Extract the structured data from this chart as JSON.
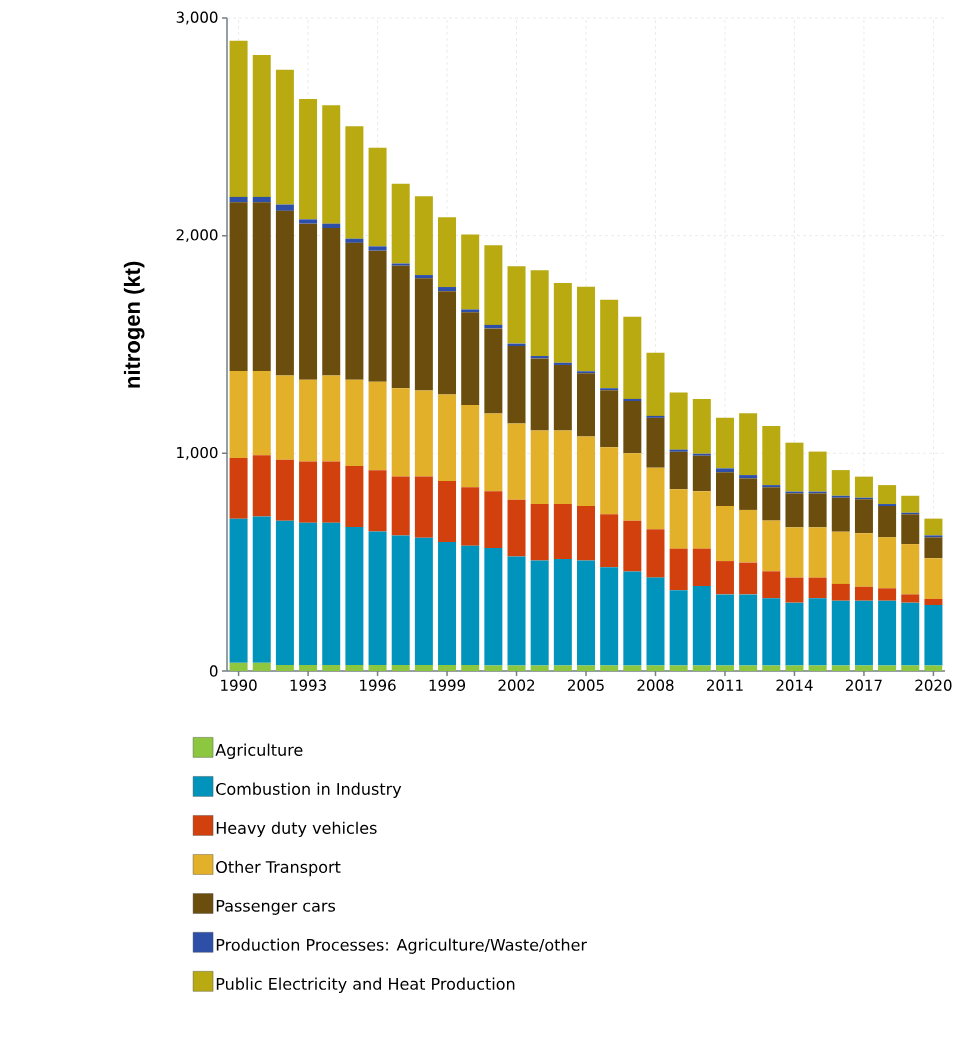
{
  "chart_data": {
    "type": "bar",
    "stacked": true,
    "ylabel": "nitrogen (kt)",
    "x": [
      1990,
      1991,
      1992,
      1993,
      1994,
      1995,
      1996,
      1997,
      1998,
      1999,
      2000,
      2001,
      2002,
      2003,
      2004,
      2005,
      2006,
      2007,
      2008,
      2009,
      2010,
      2011,
      2012,
      2013,
      2014,
      2015,
      2016,
      2017,
      2018,
      2019,
      2020
    ],
    "xlim": [
      1989.5,
      2020.5
    ],
    "xticks": [
      1990,
      1993,
      1996,
      1999,
      2002,
      2005,
      2008,
      2011,
      2014,
      2017,
      2020
    ],
    "ylim": [
      0,
      3000
    ],
    "yticks": [
      0,
      {
        "value": 1000,
        "label": "1,000"
      },
      {
        "value": 2000,
        "label": "2,000"
      },
      {
        "value": 3000,
        "label": "3,000"
      }
    ],
    "grid": true,
    "legend": "bottom",
    "series": [
      {
        "name": "Agriculture",
        "color": "#8dc63f",
        "values": [
          38,
          38,
          27,
          27,
          27,
          27,
          27,
          27,
          27,
          27,
          27,
          25,
          25,
          25,
          25,
          25,
          25,
          25,
          25,
          25,
          25,
          25,
          25,
          25,
          25,
          25,
          25,
          25,
          25,
          25,
          25
        ]
      },
      {
        "name": "Combustion in Industry",
        "color": "#0094bc",
        "values": [
          662,
          672,
          663,
          654,
          654,
          634,
          614,
          595,
          585,
          566,
          548,
          540,
          501,
          483,
          490,
          483,
          452,
          432,
          404,
          346,
          365,
          327,
          327,
          309,
          289,
          309,
          298,
          298,
          298,
          289,
          278
        ]
      },
      {
        "name": "Heavy duty vehicles",
        "color": "#d2400e",
        "values": [
          279,
          281,
          281,
          281,
          281,
          281,
          281,
          271,
          281,
          280,
          269,
          261,
          261,
          259,
          252,
          250,
          243,
          233,
          222,
          191,
          172,
          153,
          146,
          124,
          115,
          95,
          77,
          64,
          57,
          38,
          28
        ]
      },
      {
        "name": "Other Transport",
        "color": "#e3b02a",
        "values": [
          399,
          387,
          387,
          376,
          396,
          396,
          407,
          406,
          396,
          397,
          378,
          357,
          350,
          338,
          338,
          319,
          308,
          310,
          283,
          273,
          264,
          253,
          242,
          233,
          231,
          231,
          240,
          246,
          234,
          231,
          187
        ]
      },
      {
        "name": "Passenger cars",
        "color": "#6b4e0e",
        "values": [
          775,
          775,
          756,
          717,
          677,
          629,
          602,
          563,
          515,
          475,
          426,
          391,
          356,
          331,
          301,
          291,
          262,
          240,
          229,
          172,
          163,
          155,
          145,
          153,
          156,
          156,
          156,
          156,
          144,
          137,
          96
        ]
      },
      {
        "name": "Production Processes: Agriculture/Waste/other",
        "color": "#2e4fa8",
        "values": [
          25,
          25,
          29,
          20,
          20,
          19,
          20,
          10,
          15,
          19,
          13,
          16,
          11,
          11,
          10,
          9,
          9,
          10,
          9,
          10,
          9,
          18,
          15,
          10,
          8,
          8,
          9,
          7,
          9,
          7,
          9
        ]
      },
      {
        "name": "Public Electricity and Heat Production",
        "color": "#b8aa10",
        "values": [
          717,
          652,
          619,
          553,
          544,
          517,
          453,
          367,
          362,
          320,
          344,
          366,
          356,
          394,
          367,
          388,
          407,
          378,
          290,
          262,
          252,
          233,
          284,
          271,
          225,
          184,
          118,
          97,
          87,
          78,
          77
        ]
      }
    ]
  }
}
